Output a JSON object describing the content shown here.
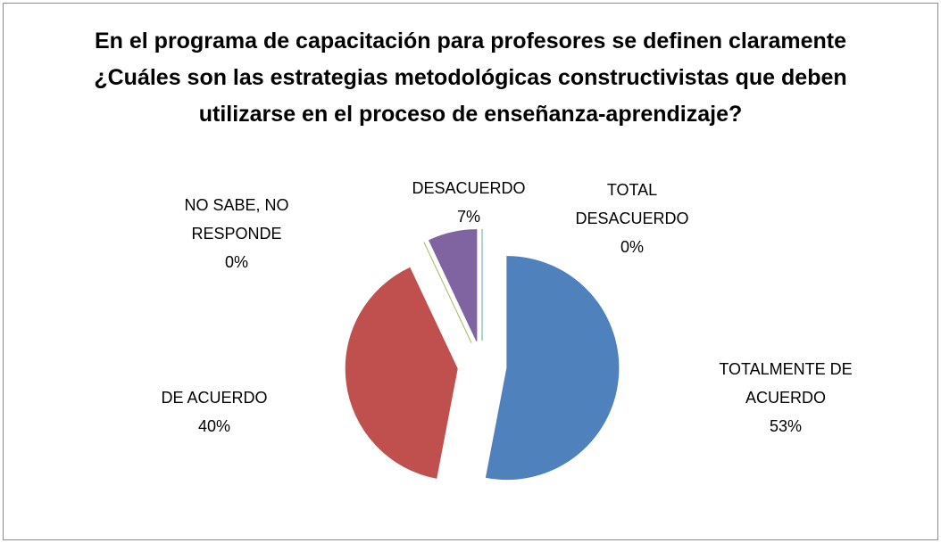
{
  "chart_data": {
    "type": "pie",
    "title": "En el programa de capacitación para profesores se definen claramente ¿Cuáles son las estrategias metodológicas constructivistas que deben utilizarse en el proceso de enseñanza-aprendizaje?",
    "categories": [
      "TOTALMENTE DE ACUERDO",
      "DE ACUERDO",
      "NO SABE, NO RESPONDE",
      "DESACUERDO",
      "TOTAL DESACUERDO"
    ],
    "values": [
      53,
      40,
      0,
      7,
      0
    ],
    "value_labels": [
      "53%",
      "40%",
      "0%",
      "7%",
      "0%"
    ],
    "colors": [
      "#4f81bd",
      "#c0504d",
      "#9bbb59",
      "#8064a2",
      "#4bacc6"
    ],
    "exploded": true
  }
}
